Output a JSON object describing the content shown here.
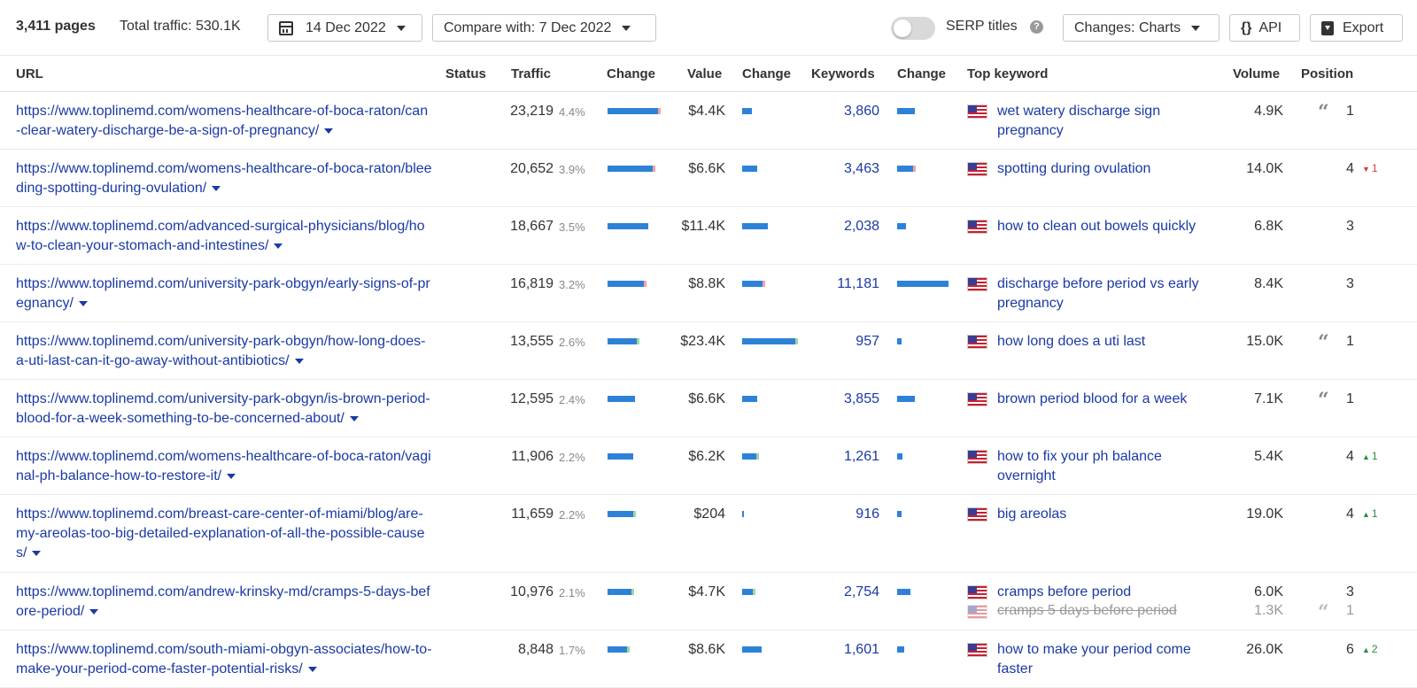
{
  "toolbar": {
    "pages_count": "3,411 pages",
    "total_traffic": "Total traffic: 530.1K",
    "date": "14 Dec 2022",
    "compare": "Compare with: 7 Dec 2022",
    "serp_titles": "SERP titles",
    "help": "?",
    "changes": "Changes: Charts",
    "api": "API",
    "api_icon": "{}",
    "export": "Export"
  },
  "headers": {
    "url": "URL",
    "status": "Status",
    "traffic": "Traffic",
    "change1": "Change",
    "value": "Value",
    "change2": "Change",
    "keywords": "Keywords",
    "change3": "Change",
    "top_keyword": "Top keyword",
    "volume": "Volume",
    "position": "Position"
  },
  "rows": [
    {
      "url": "https://www.toplinemd.com/womens-healthcare-of-boca-raton/can-clear-watery-discharge-be-a-sign-of-pregnancy/",
      "traffic": "23,219",
      "traffic_pct": "4.4%",
      "value": "$4.4K",
      "keywords": "3,860",
      "top_keyword": "wet watery discharge sign pregnancy",
      "volume": "4.9K",
      "position": "1",
      "quote": true,
      "delta": "",
      "delta_dir": "",
      "traffic_share": 1.0,
      "value_share": 0.19,
      "keywords_share": 0.35,
      "traffic_tip": "red",
      "value_tip": "",
      "kw_tip": ""
    },
    {
      "url": "https://www.toplinemd.com/womens-healthcare-of-boca-raton/bleeding-spotting-during-ovulation/",
      "traffic": "20,652",
      "traffic_pct": "3.9%",
      "value": "$6.6K",
      "keywords": "3,463",
      "top_keyword": "spotting during ovulation",
      "volume": "14.0K",
      "position": "4",
      "quote": false,
      "delta": "1",
      "delta_dir": "down",
      "traffic_share": 0.89,
      "value_share": 0.28,
      "keywords_share": 0.31,
      "traffic_tip": "red",
      "value_tip": "",
      "kw_tip": "red"
    },
    {
      "url": "https://www.toplinemd.com/advanced-surgical-physicians/blog/how-to-clean-your-stomach-and-intestines/",
      "traffic": "18,667",
      "traffic_pct": "3.5%",
      "value": "$11.4K",
      "keywords": "2,038",
      "top_keyword": "how to clean out bowels quickly",
      "volume": "6.8K",
      "position": "3",
      "quote": false,
      "delta": "",
      "delta_dir": "",
      "traffic_share": 0.8,
      "value_share": 0.49,
      "keywords_share": 0.18,
      "traffic_tip": "",
      "value_tip": "",
      "kw_tip": ""
    },
    {
      "url": "https://www.toplinemd.com/university-park-obgyn/early-signs-of-pregnancy/",
      "traffic": "16,819",
      "traffic_pct": "3.2%",
      "value": "$8.8K",
      "keywords": "11,181",
      "top_keyword": "discharge before period vs early pregnancy",
      "volume": "8.4K",
      "position": "3",
      "quote": false,
      "delta": "",
      "delta_dir": "",
      "traffic_share": 0.72,
      "value_share": 0.38,
      "keywords_share": 1.0,
      "traffic_tip": "red",
      "value_tip": "red",
      "kw_tip": ""
    },
    {
      "url": "https://www.toplinemd.com/university-park-obgyn/how-long-does-a-uti-last-can-it-go-away-without-antibiotics/",
      "traffic": "13,555",
      "traffic_pct": "2.6%",
      "value": "$23.4K",
      "keywords": "957",
      "top_keyword": "how long does a uti last",
      "volume": "15.0K",
      "position": "1",
      "quote": true,
      "delta": "",
      "delta_dir": "",
      "traffic_share": 0.58,
      "value_share": 1.0,
      "keywords_share": 0.08,
      "traffic_tip": "green",
      "value_tip": "green",
      "kw_tip": ""
    },
    {
      "url": "https://www.toplinemd.com/university-park-obgyn/is-brown-period-blood-for-a-week-something-to-be-concerned-about/",
      "traffic": "12,595",
      "traffic_pct": "2.4%",
      "value": "$6.6K",
      "keywords": "3,855",
      "top_keyword": "brown period blood for a week",
      "volume": "7.1K",
      "position": "1",
      "quote": true,
      "delta": "",
      "delta_dir": "",
      "traffic_share": 0.54,
      "value_share": 0.28,
      "keywords_share": 0.34,
      "traffic_tip": "",
      "value_tip": "",
      "kw_tip": ""
    },
    {
      "url": "https://www.toplinemd.com/womens-healthcare-of-boca-raton/vaginal-ph-balance-how-to-restore-it/",
      "traffic": "11,906",
      "traffic_pct": "2.2%",
      "value": "$6.2K",
      "keywords": "1,261",
      "top_keyword": "how to fix your ph balance overnight",
      "volume": "5.4K",
      "position": "4",
      "quote": false,
      "delta": "1",
      "delta_dir": "up",
      "traffic_share": 0.51,
      "value_share": 0.26,
      "keywords_share": 0.11,
      "traffic_tip": "",
      "value_tip": "green",
      "kw_tip": ""
    },
    {
      "url": "https://www.toplinemd.com/breast-care-center-of-miami/blog/are-my-areolas-too-big-detailed-explanation-of-all-the-possible-causes/",
      "traffic": "11,659",
      "traffic_pct": "2.2%",
      "value": "$204",
      "keywords": "916",
      "top_keyword": "big areolas",
      "volume": "19.0K",
      "position": "4",
      "quote": false,
      "delta": "1",
      "delta_dir": "up",
      "traffic_share": 0.5,
      "value_share": 0.03,
      "keywords_share": 0.08,
      "traffic_tip": "green",
      "value_tip": "",
      "kw_tip": ""
    },
    {
      "url": "https://www.toplinemd.com/andrew-krinsky-md/cramps-5-days-before-period/",
      "traffic": "10,976",
      "traffic_pct": "2.1%",
      "value": "$4.7K",
      "keywords": "2,754",
      "top_keyword": "cramps before period",
      "volume": "6.0K",
      "position": "3",
      "quote": false,
      "delta": "",
      "delta_dir": "",
      "traffic_share": 0.47,
      "value_share": 0.2,
      "keywords_share": 0.25,
      "traffic_tip": "green",
      "value_tip": "green",
      "kw_tip": "",
      "sub": {
        "top_keyword": "cramps 5 days before period",
        "volume": "1.3K",
        "position": "1",
        "quote": true
      }
    },
    {
      "url": "https://www.toplinemd.com/south-miami-obgyn-associates/how-to-make-your-period-come-faster-potential-risks/",
      "traffic": "8,848",
      "traffic_pct": "1.7%",
      "value": "$8.6K",
      "keywords": "1,601",
      "top_keyword": "how to make your period come faster",
      "volume": "26.0K",
      "position": "6",
      "quote": false,
      "delta": "2",
      "delta_dir": "up",
      "traffic_share": 0.38,
      "value_share": 0.37,
      "keywords_share": 0.14,
      "traffic_tip": "green",
      "value_tip": "",
      "kw_tip": ""
    }
  ],
  "colors": {
    "link": "#1a3aa4",
    "bar": "#2d82d8",
    "down": "#d23c3c",
    "up": "#2e8b3d"
  }
}
